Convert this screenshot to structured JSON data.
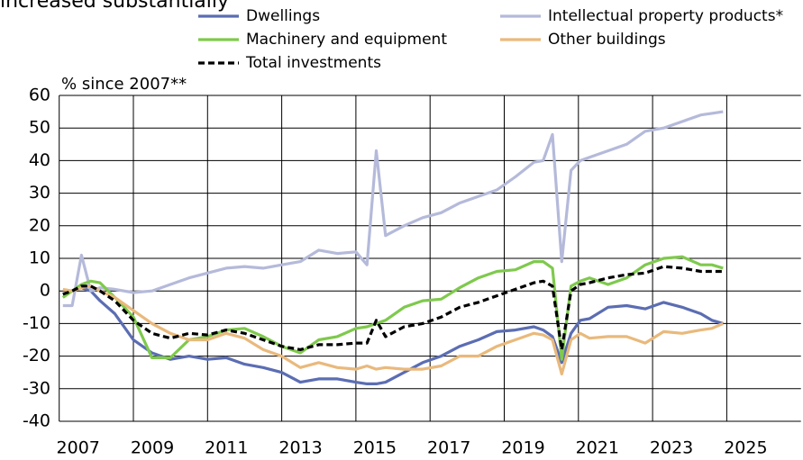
{
  "chart_data": {
    "type": "line",
    "title": "increased substantially",
    "y_axis_label": "% since 2007**",
    "x": [
      2007.1,
      2007.35,
      2007.6,
      2007.85,
      2008.1,
      2008.5,
      2009.0,
      2009.5,
      2010.0,
      2010.5,
      2011.0,
      2011.5,
      2012.0,
      2012.5,
      2013.0,
      2013.5,
      2014.0,
      2014.5,
      2015.0,
      2015.3,
      2015.55,
      2015.8,
      2016.3,
      2016.8,
      2017.3,
      2017.8,
      2018.3,
      2018.8,
      2019.3,
      2019.8,
      2020.05,
      2020.3,
      2020.55,
      2020.8,
      2021.05,
      2021.3,
      2021.8,
      2022.3,
      2022.8,
      2023.3,
      2023.8,
      2024.3,
      2024.6,
      2024.9
    ],
    "series": [
      {
        "name": "Dwellings",
        "color": "#5b6db3",
        "dash": false,
        "values": [
          -1,
          0,
          1,
          0,
          -3,
          -7,
          -15,
          -19,
          -21,
          -20,
          -21,
          -20.5,
          -22.5,
          -23.5,
          -25,
          -28,
          -27,
          -27,
          -28,
          -28.5,
          -28.5,
          -28,
          -25,
          -22,
          -20,
          -17,
          -15,
          -12.5,
          -12,
          -11,
          -12,
          -14,
          -22,
          -13,
          -9,
          -8.5,
          -5,
          -4.5,
          -5.5,
          -3.5,
          -5,
          -7,
          -9,
          -10
        ]
      },
      {
        "name": "Intellectual property products*",
        "color": "#b5bada",
        "dash": false,
        "values": [
          -4.5,
          -4.5,
          11,
          0,
          1,
          0.5,
          -0.5,
          0,
          2,
          4,
          5.5,
          7,
          7.5,
          7,
          8,
          9,
          12.5,
          11.5,
          12,
          8,
          43,
          17,
          20,
          22.5,
          24,
          27,
          29,
          31,
          35,
          39.5,
          40,
          48,
          9,
          37,
          40,
          41,
          43,
          45,
          49,
          50,
          52,
          54,
          54.5,
          55
        ]
      },
      {
        "name": "Machinery and equipment",
        "color": "#7fc94d",
        "dash": false,
        "values": [
          -2,
          0,
          2,
          3,
          2.5,
          -2,
          -8,
          -20.5,
          -20.5,
          -15,
          -14,
          -12,
          -11.5,
          -14,
          -17,
          -19,
          -15,
          -14,
          -11.5,
          -11,
          -10,
          -9,
          -5,
          -3,
          -2.5,
          1,
          4,
          6,
          6.5,
          9,
          9,
          7,
          -21,
          1.5,
          3,
          4,
          2,
          4,
          8,
          10,
          10.5,
          8,
          8,
          7
        ]
      },
      {
        "name": "Other buildings",
        "color": "#e9b97c",
        "dash": false,
        "values": [
          0.5,
          0,
          1,
          1.5,
          0,
          -2,
          -6,
          -10,
          -13,
          -15,
          -15,
          -13,
          -14.5,
          -18,
          -20,
          -23.5,
          -22,
          -23.5,
          -24,
          -23,
          -24,
          -23.5,
          -24,
          -24,
          -23,
          -20,
          -20,
          -17,
          -15,
          -13,
          -13.5,
          -15,
          -25.5,
          -15,
          -13,
          -14.5,
          -14,
          -14,
          -16,
          -12.5,
          -13,
          -12,
          -11.5,
          -10
        ]
      },
      {
        "name": "Total investments",
        "color": "#000000",
        "dash": true,
        "values": [
          -1,
          0,
          1.5,
          1.5,
          0,
          -3,
          -9,
          -13,
          -14.5,
          -13,
          -13.5,
          -12,
          -13,
          -15,
          -17,
          -18,
          -16.5,
          -16.5,
          -16,
          -16,
          -9,
          -14,
          -11,
          -10,
          -8,
          -5,
          -3.5,
          -1.5,
          0.5,
          2.5,
          3,
          1.5,
          -18,
          0,
          2,
          2.5,
          4,
          5,
          5.5,
          7.5,
          7,
          6,
          6,
          6
        ]
      }
    ],
    "xlim": [
      2007,
      2027
    ],
    "xticks": [
      2007,
      2009,
      2011,
      2013,
      2015,
      2017,
      2019,
      2021,
      2023,
      2025
    ],
    "ylim": [
      -40,
      60
    ],
    "yticks": [
      -40,
      -30,
      -20,
      -10,
      0,
      10,
      20,
      30,
      40,
      50,
      60
    ],
    "grid": true
  }
}
